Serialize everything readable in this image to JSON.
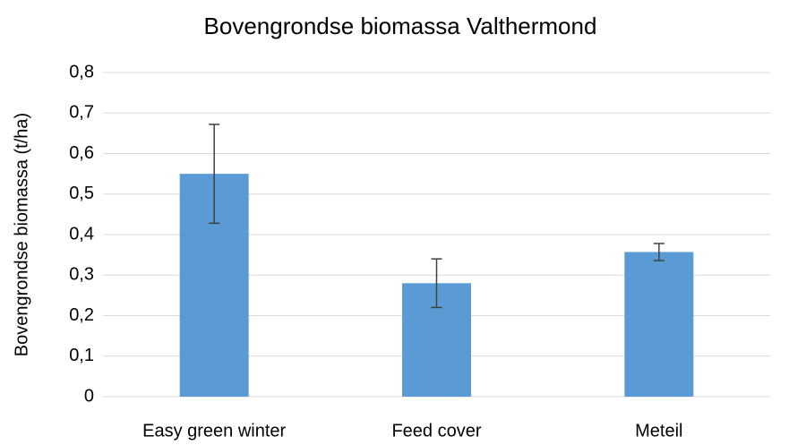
{
  "chart_data": {
    "type": "bar",
    "title": "Bovengrondse biomassa Valthermond",
    "ylabel": "Bovengrondse biomassa (t/ha)",
    "categories": [
      "Easy green winter",
      "Feed cover",
      "Meteil"
    ],
    "values": [
      0.55,
      0.28,
      0.357
    ],
    "errors": [
      0.122,
      0.06,
      0.021
    ],
    "color": "#5b9bd5",
    "ylim": [
      0,
      0.8
    ],
    "yticks": [
      0,
      {
        "value": 0.1,
        "label": "0,1"
      },
      {
        "value": 0.2,
        "label": "0,2"
      },
      {
        "value": 0.3,
        "label": "0,3"
      },
      {
        "value": 0.4,
        "label": "0,4"
      },
      {
        "value": 0.5,
        "label": "0,5"
      },
      {
        "value": 0.6,
        "label": "0,6"
      },
      {
        "value": 0.7,
        "label": "0,7"
      },
      {
        "value": 0.8,
        "label": "0,8"
      }
    ],
    "grid": true
  }
}
